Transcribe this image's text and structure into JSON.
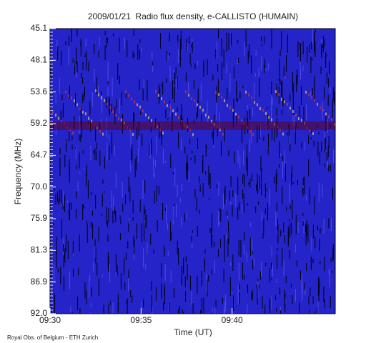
{
  "chart_data": {
    "type": "spectrogram",
    "title": "2009/01/21  Radio flux density, e-CALLISTO (HUMAIN)",
    "x_label": "Time (UT)",
    "y_label": "Frequency (MHz)",
    "xlim": [
      "09:30",
      "09:45:40"
    ],
    "xticks": [
      "09:30",
      "09:35",
      "09:40"
    ],
    "y_labels": [
      "45.1",
      "48.1",
      "53.6",
      "59.2",
      "64.7",
      "70.0",
      "75.9",
      "81.3",
      "86.9",
      "92.0"
    ],
    "credit": "Royal Obs. of Belgium - ETH Zurich"
  }
}
